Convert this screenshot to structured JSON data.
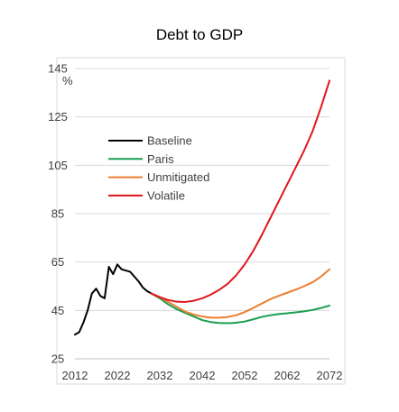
{
  "chart_data": {
    "type": "line",
    "title": "Debt to GDP",
    "ylabel": "%",
    "xlabel": "",
    "xlim": [
      2012,
      2072
    ],
    "ylim": [
      25,
      145
    ],
    "x_ticks": [
      2012,
      2022,
      2032,
      2042,
      2052,
      2062,
      2072
    ],
    "y_ticks": [
      25,
      45,
      65,
      85,
      105,
      125,
      145
    ],
    "grid": "horizontal",
    "legend_position": "left-middle",
    "series": [
      {
        "name": "Baseline",
        "color": "#000000",
        "points": [
          [
            2012,
            35
          ],
          [
            2013,
            36
          ],
          [
            2014,
            40
          ],
          [
            2015,
            45
          ],
          [
            2016,
            52
          ],
          [
            2017,
            54
          ],
          [
            2018,
            51
          ],
          [
            2019,
            50
          ],
          [
            2020,
            63
          ],
          [
            2021,
            60
          ],
          [
            2022,
            64
          ],
          [
            2023,
            62
          ],
          [
            2024,
            61.5
          ],
          [
            2025,
            61
          ],
          [
            2026,
            59
          ],
          [
            2027,
            57
          ],
          [
            2028,
            54.5
          ],
          [
            2029,
            53
          ],
          [
            2030,
            52
          ]
        ]
      },
      {
        "name": "Paris",
        "color": "#1a9e50",
        "points": [
          [
            2030,
            52
          ],
          [
            2032,
            50
          ],
          [
            2034,
            47.5
          ],
          [
            2036,
            45.5
          ],
          [
            2038,
            44
          ],
          [
            2040,
            42.5
          ],
          [
            2042,
            41
          ],
          [
            2044,
            40.2
          ],
          [
            2046,
            39.8
          ],
          [
            2048,
            39.7
          ],
          [
            2050,
            39.9
          ],
          [
            2052,
            40.4
          ],
          [
            2054,
            41.3
          ],
          [
            2056,
            42.3
          ],
          [
            2058,
            43
          ],
          [
            2060,
            43.5
          ],
          [
            2062,
            43.8
          ],
          [
            2064,
            44.2
          ],
          [
            2066,
            44.6
          ],
          [
            2068,
            45.2
          ],
          [
            2070,
            46
          ],
          [
            2072,
            47
          ]
        ]
      },
      {
        "name": "Unmitigated",
        "color": "#ed7d31",
        "points": [
          [
            2030,
            52
          ],
          [
            2032,
            50.5
          ],
          [
            2034,
            48.5
          ],
          [
            2036,
            46.5
          ],
          [
            2038,
            44.5
          ],
          [
            2040,
            43.3
          ],
          [
            2042,
            42.5
          ],
          [
            2044,
            42
          ],
          [
            2046,
            42
          ],
          [
            2048,
            42.3
          ],
          [
            2050,
            43
          ],
          [
            2052,
            44.3
          ],
          [
            2054,
            46
          ],
          [
            2056,
            47.8
          ],
          [
            2058,
            49.6
          ],
          [
            2060,
            51
          ],
          [
            2062,
            52.3
          ],
          [
            2064,
            53.6
          ],
          [
            2066,
            55
          ],
          [
            2068,
            56.6
          ],
          [
            2070,
            59
          ],
          [
            2072,
            62
          ]
        ]
      },
      {
        "name": "Volatile",
        "color": "#e0161b",
        "points": [
          [
            2030,
            52
          ],
          [
            2032,
            50.5
          ],
          [
            2034,
            49.3
          ],
          [
            2036,
            48.6
          ],
          [
            2038,
            48.5
          ],
          [
            2040,
            49
          ],
          [
            2042,
            50
          ],
          [
            2044,
            51.5
          ],
          [
            2046,
            53.5
          ],
          [
            2048,
            56
          ],
          [
            2050,
            59.5
          ],
          [
            2052,
            64
          ],
          [
            2054,
            69.5
          ],
          [
            2056,
            76
          ],
          [
            2058,
            83
          ],
          [
            2060,
            90
          ],
          [
            2062,
            97
          ],
          [
            2064,
            104
          ],
          [
            2066,
            111
          ],
          [
            2068,
            119
          ],
          [
            2070,
            129
          ],
          [
            2072,
            140
          ]
        ]
      }
    ]
  }
}
